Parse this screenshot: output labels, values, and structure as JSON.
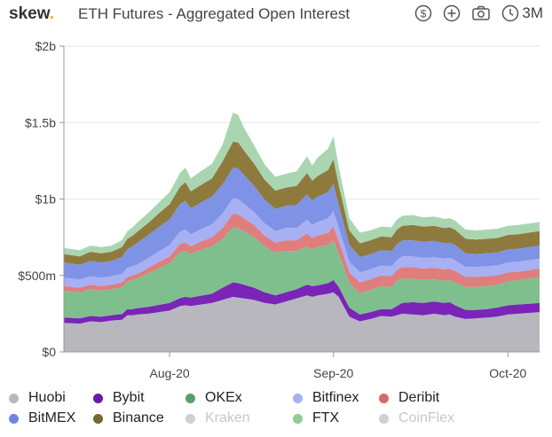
{
  "header": {
    "logo_text": "skew",
    "logo_dot": ".",
    "title": "ETH Futures - Aggregated Open Interest",
    "icons": [
      "dollar-icon",
      "plus-icon",
      "camera-icon",
      "clock-icon"
    ],
    "range_label": "3M"
  },
  "colors": {
    "Huobi": "#b7b7bd",
    "Bybit": "#7a24b8",
    "OKEx": "#7fbf8e",
    "Deribit": "#e07d7d",
    "Bitfinex": "#a6b0f3",
    "Binance": "#8f7a3e",
    "FTX": "#a9d6b0",
    "BitMEX": "#7f93e6",
    "Kraken": "#d0d0d0",
    "CoinFlex": "#d0d0d0",
    "logo_dot": "#f2b300"
  },
  "legend": [
    {
      "name": "Huobi",
      "color": "#b7b7bd",
      "active": true
    },
    {
      "name": "Bybit",
      "color": "#6a1aa8",
      "active": true
    },
    {
      "name": "OKEx",
      "color": "#5a9e6a",
      "active": true
    },
    {
      "name": "Bitfinex",
      "color": "#a6b0f3",
      "active": true
    },
    {
      "name": "Deribit",
      "color": "#d96a6a",
      "active": true
    },
    {
      "name": "BitMEX",
      "color": "#6f85e0",
      "active": true
    },
    {
      "name": "Binance",
      "color": "#7a6535",
      "active": true
    },
    {
      "name": "Kraken",
      "color": "#d0d0d0",
      "active": false
    },
    {
      "name": "FTX",
      "color": "#8ecc98",
      "active": true
    },
    {
      "name": "CoinFlex",
      "color": "#d0d0d0",
      "active": false
    }
  ],
  "chart_data": {
    "type": "area",
    "stacked": true,
    "title": "ETH Futures - Aggregated Open Interest",
    "xlabel": "",
    "ylabel": "",
    "ylim": [
      0,
      2000000000
    ],
    "yticks": [
      0,
      500000000,
      1000000000,
      1500000000,
      2000000000
    ],
    "yticklabels": [
      "$0",
      "$500m",
      "$1b",
      "$1.5b",
      "$2b"
    ],
    "xticks": [
      {
        "x": 20,
        "label": "Aug-20"
      },
      {
        "x": 51,
        "label": "Sep-20"
      },
      {
        "x": 84,
        "label": "Oct-20"
      }
    ],
    "x": [
      0,
      3,
      5,
      7,
      9,
      11,
      12,
      13,
      14,
      16,
      18,
      20,
      22,
      23,
      24,
      26,
      28,
      30,
      32,
      33,
      34,
      36,
      38,
      40,
      42,
      44,
      46,
      47,
      48,
      50,
      51,
      52,
      54,
      56,
      58,
      60,
      62,
      63,
      64,
      66,
      68,
      70,
      72,
      73,
      74,
      76,
      78,
      80,
      82,
      84,
      86,
      88,
      90
    ],
    "series": [
      {
        "name": "Huobi",
        "values": [
          190,
          185,
          200,
          195,
          205,
          210,
          240,
          240,
          245,
          250,
          260,
          270,
          300,
          305,
          300,
          310,
          320,
          340,
          360,
          355,
          350,
          340,
          320,
          310,
          330,
          350,
          370,
          360,
          370,
          380,
          390,
          360,
          230,
          200,
          215,
          235,
          230,
          240,
          250,
          245,
          240,
          250,
          240,
          245,
          230,
          215,
          220,
          225,
          230,
          245,
          250,
          255,
          260
        ]
      },
      {
        "name": "Bybit",
        "values": [
          35,
          35,
          35,
          35,
          35,
          38,
          40,
          40,
          42,
          45,
          48,
          50,
          52,
          55,
          55,
          58,
          60,
          80,
          95,
          95,
          90,
          80,
          70,
          60,
          60,
          60,
          70,
          70,
          65,
          70,
          80,
          65,
          60,
          45,
          45,
          45,
          50,
          60,
          70,
          80,
          80,
          80,
          80,
          80,
          75,
          60,
          55,
          55,
          60,
          60,
          60,
          60,
          60
        ]
      },
      {
        "name": "OKEx",
        "values": [
          175,
          170,
          175,
          170,
          170,
          175,
          180,
          190,
          195,
          220,
          240,
          260,
          300,
          300,
          285,
          300,
          310,
          320,
          360,
          360,
          350,
          330,
          300,
          280,
          270,
          250,
          250,
          240,
          250,
          250,
          260,
          220,
          160,
          140,
          145,
          150,
          145,
          165,
          160,
          155,
          150,
          145,
          145,
          145,
          150,
          150,
          150,
          150,
          150,
          155,
          160,
          165,
          170
        ]
      },
      {
        "name": "Deribit",
        "values": [
          30,
          30,
          30,
          30,
          30,
          30,
          30,
          30,
          30,
          35,
          40,
          45,
          55,
          55,
          50,
          55,
          60,
          70,
          90,
          90,
          85,
          80,
          70,
          65,
          70,
          70,
          85,
          75,
          75,
          80,
          90,
          80,
          70,
          70,
          70,
          70,
          70,
          70,
          75,
          75,
          75,
          75,
          75,
          75,
          75,
          65,
          65,
          65,
          60,
          60,
          55,
          55,
          55
        ]
      },
      {
        "name": "Bitfinex",
        "values": [
          55,
          55,
          55,
          55,
          55,
          58,
          60,
          60,
          62,
          65,
          70,
          75,
          80,
          85,
          80,
          80,
          85,
          95,
          100,
          100,
          95,
          85,
          80,
          75,
          80,
          80,
          90,
          85,
          90,
          95,
          100,
          85,
          70,
          65,
          65,
          65,
          65,
          65,
          70,
          70,
          70,
          70,
          70,
          70,
          70,
          65,
          65,
          65,
          65,
          65,
          65,
          65,
          65
        ]
      },
      {
        "name": "BitMEX",
        "values": [
          100,
          95,
          100,
          100,
          100,
          110,
          120,
          130,
          140,
          150,
          160,
          165,
          180,
          190,
          170,
          175,
          180,
          190,
          200,
          200,
          190,
          170,
          155,
          145,
          145,
          150,
          165,
          160,
          165,
          170,
          180,
          150,
          110,
          100,
          100,
          100,
          100,
          105,
          105,
          105,
          105,
          105,
          100,
          100,
          100,
          90,
          85,
          85,
          85,
          85,
          85,
          85,
          85
        ]
      },
      {
        "name": "Binance",
        "values": [
          55,
          55,
          60,
          60,
          60,
          65,
          70,
          70,
          75,
          80,
          90,
          100,
          115,
          120,
          110,
          115,
          120,
          150,
          170,
          170,
          160,
          145,
          130,
          120,
          120,
          125,
          140,
          130,
          135,
          145,
          160,
          130,
          95,
          90,
          90,
          90,
          90,
          95,
          95,
          100,
          100,
          100,
          100,
          100,
          100,
          95,
          95,
          95,
          95,
          95,
          95,
          95,
          95
        ]
      },
      {
        "name": "FTX",
        "values": [
          40,
          40,
          40,
          40,
          40,
          45,
          50,
          55,
          60,
          65,
          70,
          80,
          90,
          95,
          85,
          90,
          95,
          110,
          190,
          180,
          150,
          120,
          100,
          90,
          90,
          95,
          110,
          100,
          120,
          140,
          150,
          120,
          80,
          70,
          65,
          65,
          65,
          65,
          65,
          65,
          60,
          60,
          60,
          60,
          60,
          60,
          60,
          60,
          60,
          60,
          60,
          60,
          60
        ]
      }
    ]
  }
}
